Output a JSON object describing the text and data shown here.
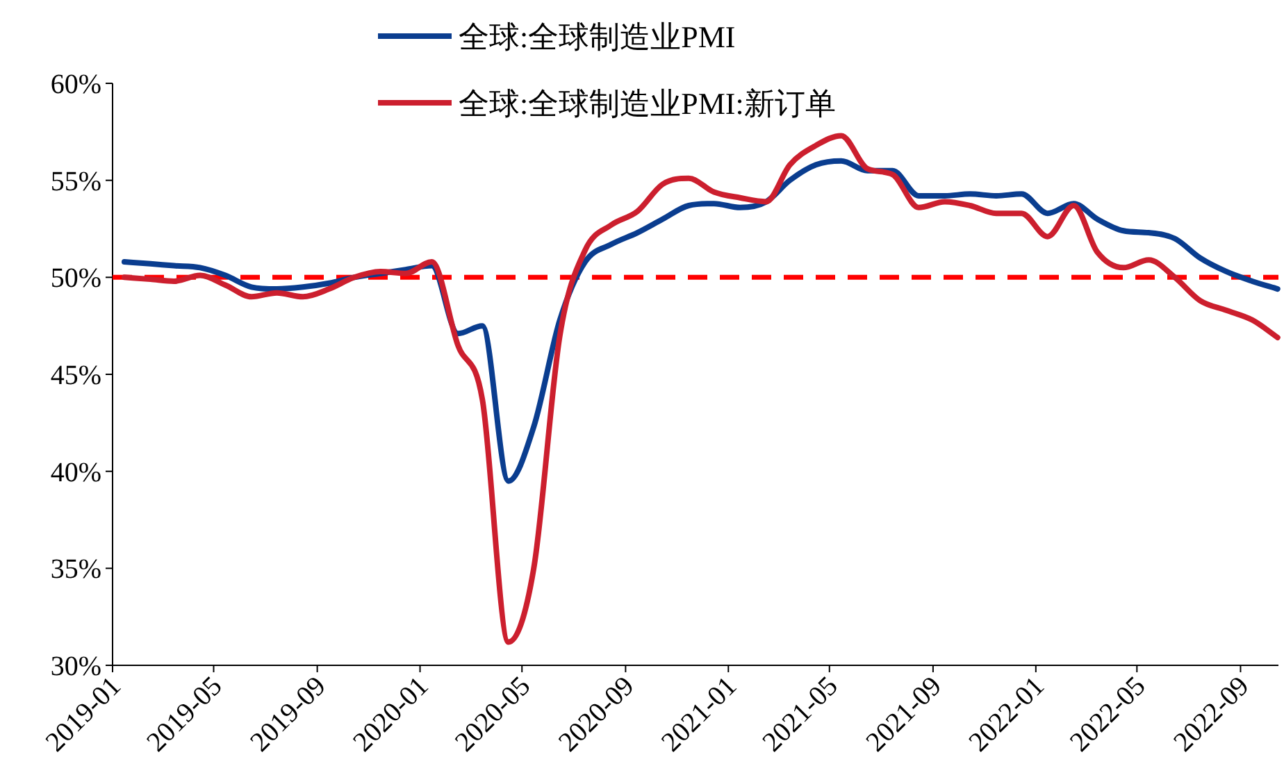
{
  "chart_data": {
    "type": "line",
    "x": [
      "2019-01-15",
      "2019-02-15",
      "2019-03-15",
      "2019-04-15",
      "2019-05-15",
      "2019-06-15",
      "2019-07-15",
      "2019-08-15",
      "2019-09-15",
      "2019-10-15",
      "2019-11-15",
      "2019-12-15",
      "2020-01-15",
      "2020-02-15",
      "2020-03-15",
      "2020-04-15",
      "2020-05-15",
      "2020-06-15",
      "2020-07-15",
      "2020-08-15",
      "2020-09-15",
      "2020-10-15",
      "2020-11-15",
      "2020-12-15",
      "2021-01-15",
      "2021-02-15",
      "2021-03-15",
      "2021-04-15",
      "2021-05-15",
      "2021-06-15",
      "2021-07-15",
      "2021-08-15",
      "2021-09-15",
      "2021-10-15",
      "2021-11-15",
      "2021-12-15",
      "2022-01-15",
      "2022-02-15",
      "2022-03-15",
      "2022-04-15",
      "2022-05-15",
      "2022-06-15",
      "2022-07-15",
      "2022-08-15",
      "2022-09-15",
      "2022-10-15"
    ],
    "series": [
      {
        "name": "全球:全球制造业PMI",
        "color": "#0a3d8f",
        "values": [
          50.8,
          50.7,
          50.6,
          50.5,
          50.1,
          49.5,
          49.4,
          49.5,
          49.7,
          50.0,
          50.2,
          50.4,
          50.6,
          47.1,
          47.5,
          39.5,
          42.3,
          47.8,
          50.8,
          51.7,
          52.3,
          53.0,
          53.7,
          53.8,
          53.6,
          53.9,
          55.0,
          55.8,
          56.0,
          55.5,
          55.5,
          54.2,
          54.2,
          54.3,
          54.2,
          54.3,
          53.3,
          53.8,
          53.0,
          52.4,
          52.3,
          52.0,
          51.0,
          50.3,
          49.8,
          49.4
        ]
      },
      {
        "name": "全球:全球制造业PMI:新订单",
        "color": "#cc1f2e",
        "values": [
          50.0,
          49.9,
          49.8,
          50.1,
          49.6,
          49.0,
          49.2,
          49.0,
          49.4,
          50.0,
          50.3,
          50.2,
          50.8,
          46.5,
          43.7,
          31.2,
          35.0,
          47.0,
          51.4,
          52.7,
          53.4,
          54.8,
          55.1,
          54.4,
          54.1,
          53.9,
          55.8,
          56.8,
          57.3,
          55.6,
          55.3,
          53.6,
          53.9,
          53.7,
          53.3,
          53.3,
          52.1,
          53.7,
          51.3,
          50.5,
          50.9,
          50.0,
          48.8,
          48.3,
          47.8,
          46.9
        ]
      }
    ],
    "xlim": [
      "2019-01-01",
      "2022-10-16"
    ],
    "xticks": [
      "2019-01",
      "2019-05",
      "2019-09",
      "2020-01",
      "2020-05",
      "2020-09",
      "2021-01",
      "2021-05",
      "2021-09",
      "2022-01",
      "2022-05",
      "2022-09"
    ],
    "ylim": [
      30,
      60
    ],
    "yticks": [
      {
        "value": 30,
        "label": "30%"
      },
      {
        "value": 35,
        "label": "35%"
      },
      {
        "value": 40,
        "label": "40%"
      },
      {
        "value": 45,
        "label": "45%"
      },
      {
        "value": 50,
        "label": "50%"
      },
      {
        "value": 55,
        "label": "55%"
      },
      {
        "value": 60,
        "label": "60%"
      }
    ],
    "ref_lines": [
      {
        "axis": "y",
        "value": 50,
        "color": "#ff0000",
        "line_style": "dashed"
      }
    ],
    "legend": "top",
    "grid": false
  }
}
